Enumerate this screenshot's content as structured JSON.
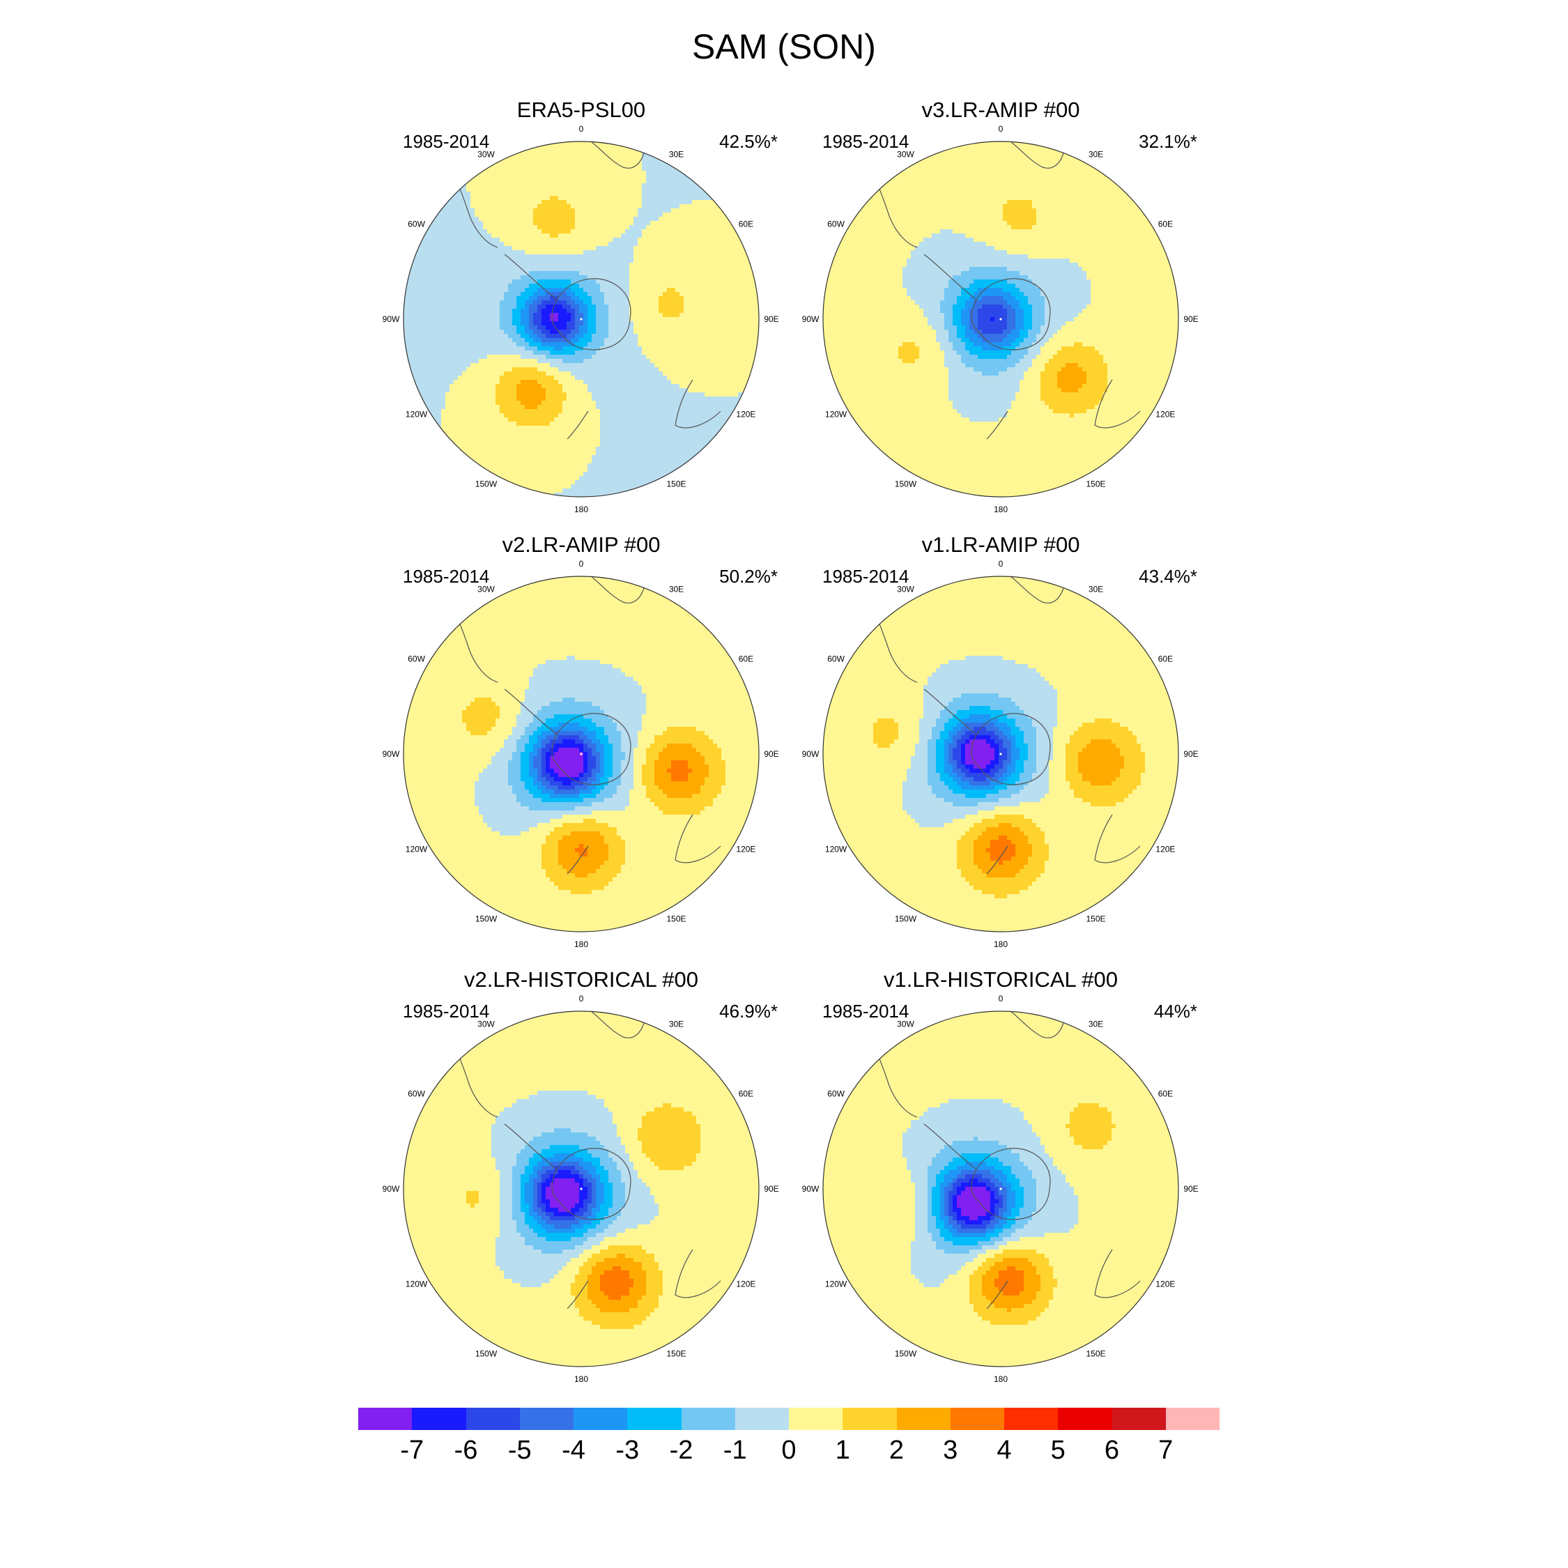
{
  "figure": {
    "title": "SAM (SON)"
  },
  "longitude_labels": [
    "0",
    "30E",
    "60E",
    "90E",
    "120E",
    "150E",
    "180",
    "150W",
    "120W",
    "90W",
    "60W",
    "30W"
  ],
  "colorbar": {
    "levels": [
      "-7",
      "-6",
      "-5",
      "-4",
      "-3",
      "-2",
      "-1",
      "0",
      "1",
      "2",
      "3",
      "4",
      "5",
      "6",
      "7"
    ],
    "colors": [
      "#8120f0",
      "#1a1aff",
      "#2c48e8",
      "#3572e8",
      "#1e96f5",
      "#00bdfa",
      "#74c7f2",
      "#b9def0",
      "#fff794",
      "#ffd32e",
      "#ffaa00",
      "#ff7800",
      "#ff2e00",
      "#eb0000",
      "#d0171c",
      "#ffb6b6"
    ]
  },
  "panels": [
    {
      "title": "ERA5-PSL00",
      "period": "1985-2014",
      "variance": "42.5%*",
      "pattern": {
        "center_val": -3,
        "center_dx": -0.15,
        "center_dy": 0.0,
        "min_val": -5.2,
        "ring_lobes": [
          {
            "ang": 215,
            "amp": 2.8,
            "r": 0.48
          },
          {
            "ang": 345,
            "amp": 1.5,
            "r": 0.57
          },
          {
            "ang": 80,
            "amp": 1.2,
            "r": 0.5
          }
        ],
        "edge_val": 0.0
      }
    },
    {
      "title": "v3.LR-AMIP  #00",
      "period": "1985-2014",
      "variance": "32.1%*",
      "pattern": {
        "center_val": -3,
        "center_dx": -0.05,
        "center_dy": 0.0,
        "min_val": -3.6,
        "ring_lobes": [
          {
            "ang": 130,
            "amp": 2.4,
            "r": 0.5
          },
          {
            "ang": 250,
            "amp": 1.3,
            "r": 0.5
          },
          {
            "ang": 10,
            "amp": 1.2,
            "r": 0.57
          }
        ],
        "edge_val": 0.2
      }
    },
    {
      "title": "v2.LR-AMIP  #00",
      "period": "1985-2014",
      "variance": "50.2%*",
      "pattern": {
        "center_val": -4.2,
        "center_dx": -0.08,
        "center_dy": 0.05,
        "min_val": -5.3,
        "ring_lobes": [
          {
            "ang": 180,
            "amp": 3.3,
            "r": 0.52
          },
          {
            "ang": 100,
            "amp": 3.2,
            "r": 0.55
          },
          {
            "ang": 290,
            "amp": 1.4,
            "r": 0.55
          }
        ],
        "edge_val": 0.3
      }
    },
    {
      "title": "v1.LR-AMIP  #00",
      "period": "1985-2014",
      "variance": "43.4%*",
      "pattern": {
        "center_val": -4,
        "center_dx": -0.12,
        "center_dy": 0.0,
        "min_val": -5.2,
        "ring_lobes": [
          {
            "ang": 180,
            "amp": 3.4,
            "r": 0.52
          },
          {
            "ang": 95,
            "amp": 2.6,
            "r": 0.55
          },
          {
            "ang": 280,
            "amp": 1.2,
            "r": 0.6
          }
        ],
        "edge_val": 0.4
      }
    },
    {
      "title": "v2.LR-HISTORICAL  #00",
      "period": "1985-2014",
      "variance": "46.9%*",
      "pattern": {
        "center_val": -4.3,
        "center_dx": -0.1,
        "center_dy": 0.03,
        "min_val": -5.3,
        "ring_lobes": [
          {
            "ang": 160,
            "amp": 3.6,
            "r": 0.55
          },
          {
            "ang": 60,
            "amp": 1.8,
            "r": 0.55
          },
          {
            "ang": 265,
            "amp": 1.3,
            "r": 0.55
          }
        ],
        "edge_val": 0.3
      }
    },
    {
      "title": "v1.LR-HISTORICAL  #00",
      "period": "1985-2014",
      "variance": "44%*",
      "pattern": {
        "center_val": -4.3,
        "center_dx": -0.15,
        "center_dy": 0.08,
        "min_val": -5.4,
        "ring_lobes": [
          {
            "ang": 175,
            "amp": 3.8,
            "r": 0.5
          },
          {
            "ang": 260,
            "amp": 1.4,
            "r": 0.55
          },
          {
            "ang": 55,
            "amp": 1.2,
            "r": 0.6
          }
        ],
        "edge_val": 0.3
      }
    }
  ]
}
